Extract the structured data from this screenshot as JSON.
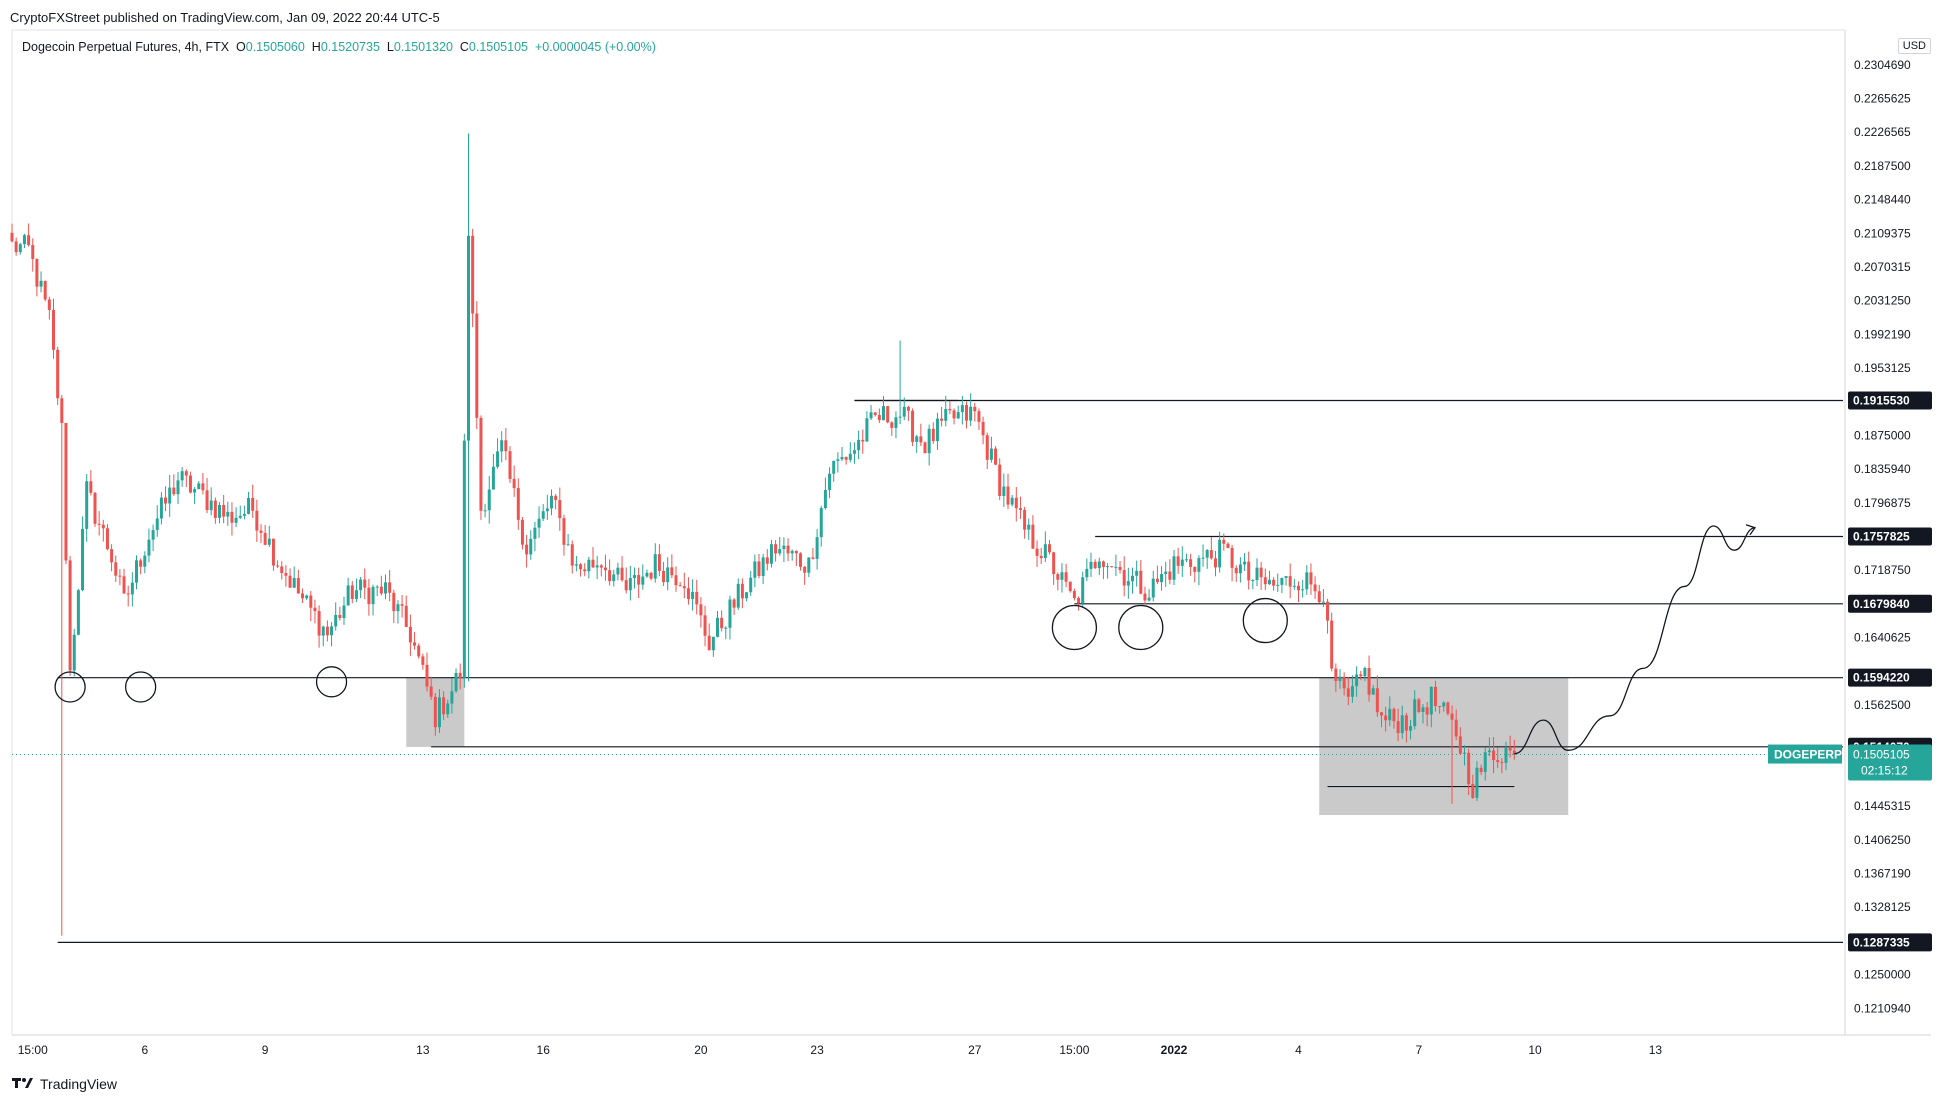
{
  "header": {
    "published": "CryptoFXStreet published on TradingView.com, Jan 09, 2022 20:44 UTC-5"
  },
  "legend": {
    "symbol": "Dogecoin Perpetual Futures, 4h, FTX",
    "open_label": "O",
    "open": "0.1505060",
    "high_label": "H",
    "high": "0.1520735",
    "low_label": "L",
    "low": "0.1501320",
    "close_label": "C",
    "close": "0.1505105",
    "change": "+0.0000045 (+0.00%)"
  },
  "currency": "USD",
  "footer": {
    "brand": "TradingView",
    "icon": "tradingview-logo-icon"
  },
  "colors": {
    "up": "#26a69a",
    "down": "#ef5350",
    "level_line": "#131722",
    "zone": "#9e9e9e",
    "current_price_bg": "#26a69a",
    "label_bg": "#131722"
  },
  "chart_data": {
    "type": "candlestick",
    "title": "Dogecoin Perpetual Futures, 4h, FTX",
    "xlabel": "",
    "ylabel": "",
    "ylim": [
      0.118,
      0.2345
    ],
    "x_ticks": [
      "15:00",
      "6",
      "9",
      "13",
      "16",
      "20",
      "23",
      "27",
      "15:00",
      "2022",
      "4",
      "7",
      "10",
      "13"
    ],
    "x_tick_index": [
      5,
      32,
      61,
      99,
      128,
      166,
      194,
      232,
      256,
      280,
      310,
      339,
      367,
      396
    ],
    "y_ticks": [
      "0.2304690",
      "0.2265625",
      "0.2226565",
      "0.2187500",
      "0.2148440",
      "0.2109375",
      "0.2070315",
      "0.2031250",
      "0.1992190",
      "0.1953125",
      "0.1875000",
      "0.1835940",
      "0.1796875",
      "0.1718750",
      "0.1640625",
      "0.1562500",
      "0.1445315",
      "0.1406250",
      "0.1367190",
      "0.1328125",
      "0.1250000",
      "0.1210940"
    ],
    "y_tick_values": [
      0.230469,
      0.2265625,
      0.2226565,
      0.21875,
      0.214844,
      0.2109375,
      0.2070315,
      0.203125,
      0.199219,
      0.1953125,
      0.1875,
      0.183594,
      0.1796875,
      0.171875,
      0.1640625,
      0.15625,
      0.1445315,
      0.140625,
      0.136719,
      0.1328125,
      0.125,
      0.121094
    ],
    "levels": [
      {
        "value": 0.191553,
        "label": "0.1915530",
        "from_index": 203
      },
      {
        "value": 0.1757825,
        "label": "0.1757825",
        "from_index": 261
      },
      {
        "value": 0.167984,
        "label": "0.1679840",
        "from_index": 256
      },
      {
        "value": 0.159422,
        "label": "0.1594220",
        "from_index": 11
      },
      {
        "value": 0.151407,
        "label": "0.1514070",
        "from_index": 101
      },
      {
        "value": 0.1287335,
        "label": "0.1287335",
        "from_index": 11
      }
    ],
    "current_price": {
      "symbol": "DOGEPERP",
      "value": "0.1505105",
      "countdown": "02:15:12"
    },
    "zones": [
      {
        "from_index": 95,
        "to_index": 109,
        "high": 0.1594,
        "low": 0.1514
      },
      {
        "from_index": 315,
        "to_index": 375,
        "high": 0.1594,
        "low": 0.1435
      }
    ],
    "circles_at_index": [
      {
        "index": 14,
        "value": 0.1595
      },
      {
        "index": 31,
        "value": 0.1595
      },
      {
        "index": 77,
        "value": 0.1601
      },
      {
        "index": 256,
        "value": 0.1664
      },
      {
        "index": 272,
        "value": 0.1664
      },
      {
        "index": 302,
        "value": 0.1672
      }
    ],
    "projection": [
      [
        362,
        0.1506
      ],
      [
        369,
        0.1545
      ],
      [
        375,
        0.151
      ],
      [
        385,
        0.155
      ],
      [
        393,
        0.1605
      ],
      [
        403,
        0.17
      ],
      [
        410,
        0.177
      ],
      [
        415,
        0.1742
      ],
      [
        420,
        0.1768
      ]
    ],
    "anchors": [
      [
        0,
        0.2095
      ],
      [
        4,
        0.209
      ],
      [
        9,
        0.201
      ],
      [
        12,
        0.188
      ],
      [
        14,
        0.16
      ],
      [
        18,
        0.181
      ],
      [
        24,
        0.1735
      ],
      [
        27,
        0.168
      ],
      [
        33,
        0.176
      ],
      [
        40,
        0.1825
      ],
      [
        46,
        0.1805
      ],
      [
        52,
        0.178
      ],
      [
        58,
        0.179
      ],
      [
        64,
        0.173
      ],
      [
        70,
        0.1685
      ],
      [
        76,
        0.1645
      ],
      [
        82,
        0.1695
      ],
      [
        90,
        0.1695
      ],
      [
        96,
        0.1645
      ],
      [
        102,
        0.155
      ],
      [
        106,
        0.158
      ],
      [
        108,
        0.16
      ],
      [
        110,
        0.2115
      ],
      [
        113,
        0.179
      ],
      [
        118,
        0.186
      ],
      [
        124,
        0.1745
      ],
      [
        130,
        0.18
      ],
      [
        136,
        0.172
      ],
      [
        142,
        0.173
      ],
      [
        148,
        0.1695
      ],
      [
        155,
        0.1725
      ],
      [
        162,
        0.171
      ],
      [
        168,
        0.1635
      ],
      [
        176,
        0.1695
      ],
      [
        184,
        0.1745
      ],
      [
        192,
        0.1725
      ],
      [
        197,
        0.1835
      ],
      [
        203,
        0.186
      ],
      [
        208,
        0.1895
      ],
      [
        214,
        0.19
      ],
      [
        220,
        0.1865
      ],
      [
        226,
        0.1895
      ],
      [
        232,
        0.19
      ],
      [
        238,
        0.182
      ],
      [
        244,
        0.1765
      ],
      [
        250,
        0.173
      ],
      [
        256,
        0.168
      ],
      [
        262,
        0.174
      ],
      [
        268,
        0.1715
      ],
      [
        274,
        0.1695
      ],
      [
        280,
        0.1725
      ],
      [
        286,
        0.173
      ],
      [
        292,
        0.174
      ],
      [
        298,
        0.171
      ],
      [
        304,
        0.17
      ],
      [
        310,
        0.171
      ],
      [
        316,
        0.1695
      ],
      [
        318,
        0.1595
      ],
      [
        322,
        0.1565
      ],
      [
        326,
        0.16
      ],
      [
        330,
        0.1545
      ],
      [
        336,
        0.1545
      ],
      [
        342,
        0.157
      ],
      [
        348,
        0.153
      ],
      [
        352,
        0.147
      ],
      [
        356,
        0.1505
      ],
      [
        360,
        0.151
      ],
      [
        362,
        0.1505
      ]
    ],
    "extreme_wicks": [
      {
        "index": 12,
        "low": 0.1295
      },
      {
        "index": 110,
        "high": 0.2225
      },
      {
        "index": 110,
        "low": 0.159
      },
      {
        "index": 214,
        "high": 0.1985
      },
      {
        "index": 347,
        "low": 0.1448
      }
    ]
  }
}
